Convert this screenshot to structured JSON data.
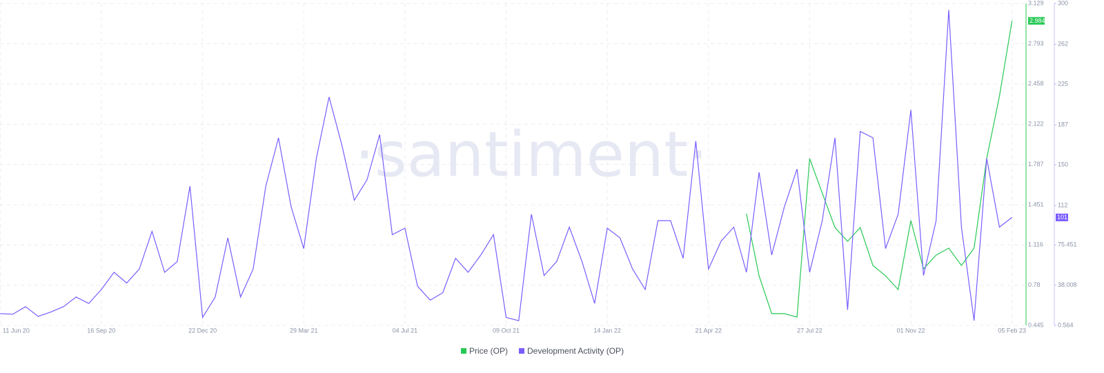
{
  "chart_data": {
    "type": "line",
    "watermark": "·santiment·",
    "categories": [
      "11 Jun 20",
      null,
      null,
      null,
      null,
      null,
      null,
      null,
      "16 Sep 20",
      null,
      null,
      null,
      null,
      null,
      null,
      null,
      "22 Dec 20",
      null,
      null,
      null,
      null,
      null,
      null,
      null,
      "29 Mar 21",
      null,
      null,
      null,
      null,
      null,
      null,
      null,
      "04 Jul 21",
      null,
      null,
      null,
      null,
      null,
      null,
      null,
      "09 Oct 21",
      null,
      null,
      null,
      null,
      null,
      null,
      null,
      "14 Jan 22",
      null,
      null,
      null,
      null,
      null,
      null,
      null,
      "21 Apr 22",
      null,
      null,
      null,
      null,
      null,
      null,
      null,
      "27 Jul 22",
      null,
      null,
      null,
      null,
      null,
      null,
      null,
      "01 Nov 22",
      null,
      null,
      null,
      null,
      null,
      null,
      null,
      "05 Feb 23"
    ],
    "series": [
      {
        "name": "Price (OP)",
        "color": "#26c953",
        "last": 2.984,
        "values": [
          null,
          null,
          null,
          null,
          null,
          null,
          null,
          null,
          null,
          null,
          null,
          null,
          null,
          null,
          null,
          null,
          null,
          null,
          null,
          null,
          null,
          null,
          null,
          null,
          null,
          null,
          null,
          null,
          null,
          null,
          null,
          null,
          null,
          null,
          null,
          null,
          null,
          null,
          null,
          null,
          null,
          null,
          null,
          null,
          null,
          null,
          null,
          null,
          null,
          null,
          null,
          null,
          null,
          null,
          null,
          null,
          null,
          null,
          null,
          1.376,
          0.859,
          0.543,
          0.543,
          0.514,
          1.836,
          1.548,
          1.261,
          1.146,
          1.261,
          0.945,
          0.859,
          0.744,
          1.319,
          0.916,
          1.031,
          1.089,
          0.945,
          1.089,
          1.836,
          2.353,
          2.984
        ]
      },
      {
        "name": "Development Activity (OP)",
        "color": "#7a5cff",
        "axis": "y2",
        "last": 101,
        "values": [
          11.5,
          11,
          18,
          9,
          13,
          18,
          27,
          21,
          34,
          50,
          40,
          53,
          88,
          50,
          60,
          130,
          8,
          27,
          82,
          27,
          53,
          130,
          175,
          111,
          72,
          156,
          213,
          169,
          117,
          136,
          178,
          85,
          91,
          37,
          24,
          31,
          63,
          50,
          66,
          85,
          8,
          5,
          104,
          47,
          60,
          92,
          60,
          21,
          91,
          82,
          53,
          34,
          98,
          98,
          63,
          172,
          53,
          79,
          92,
          50,
          143,
          66,
          111,
          146,
          50,
          98,
          175,
          15,
          181,
          175,
          72,
          104,
          201,
          47,
          98,
          294,
          92,
          5,
          156,
          92,
          101
        ]
      }
    ],
    "ylim": [
      0.445,
      3.129
    ],
    "yticks": [
      0.445,
      0.78,
      1.116,
      1.451,
      1.787,
      2.122,
      2.458,
      2.793,
      3.129
    ],
    "y2lim": [
      0.564,
      300
    ],
    "y2ticks": [
      0.564,
      38.008,
      75.451,
      112,
      150,
      187,
      225,
      262,
      300
    ],
    "grid": true
  }
}
